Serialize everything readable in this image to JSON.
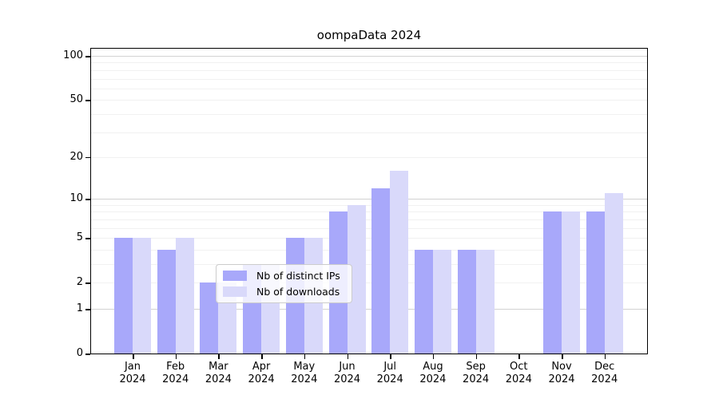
{
  "page": {
    "background": "#ffffff"
  },
  "chart_data": {
    "type": "bar",
    "title": "oompaData 2024",
    "xlabel": "",
    "ylabel": "",
    "year": "2024",
    "categories": [
      "Jan",
      "Feb",
      "Mar",
      "Apr",
      "May",
      "Jun",
      "Jul",
      "Aug",
      "Sep",
      "Oct",
      "Nov",
      "Dec"
    ],
    "series": [
      {
        "name": "Nb of distinct IPs",
        "color": "#a8a8fa",
        "values": [
          5,
          4,
          2,
          3,
          5,
          8,
          12,
          4,
          4,
          0,
          8,
          8
        ]
      },
      {
        "name": "Nb of downloads",
        "color": "#d9d9fa",
        "values": [
          5,
          5,
          2,
          3,
          5,
          9,
          16,
          4,
          4,
          0,
          8,
          11
        ]
      }
    ],
    "yscale": "log1p",
    "ylim": [
      0,
      100
    ],
    "y_ticks": [
      0,
      1,
      2,
      5,
      10,
      20,
      50,
      100
    ],
    "grid_minor_values": [
      2,
      3,
      4,
      5,
      6,
      7,
      8,
      9,
      20,
      30,
      40,
      50,
      60,
      70,
      80,
      90
    ],
    "grid_major_values": [
      1,
      10,
      100
    ],
    "grid": "horizontal",
    "legend_position": "bottom-center-inside"
  },
  "colors": {
    "grid_major": "#d2d2d2",
    "grid_minor": "#f1f1f1",
    "axis": "#000000",
    "legend_border": "#cccccc"
  }
}
